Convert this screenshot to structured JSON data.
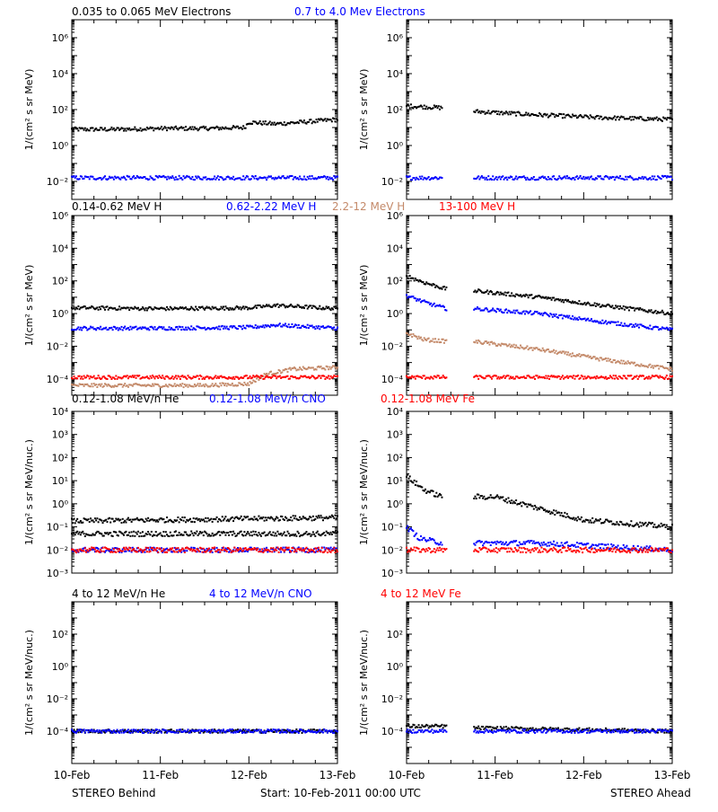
{
  "colors": {
    "black": "#000000",
    "blue": "#0000ff",
    "tan": "#c48a6a",
    "red": "#ff0000"
  },
  "footer": {
    "left": "STEREO Behind",
    "center": "Start: 10-Feb-2011 00:00 UTC",
    "right": "STEREO Ahead"
  },
  "x_tick_labels": [
    "10-Feb",
    "11-Feb",
    "12-Feb",
    "13-Feb"
  ],
  "chart_data": [
    {
      "type": "scatter",
      "row": 0,
      "legend": [
        {
          "label": "0.035 to 0.065 MeV Electrons",
          "color": "#000000"
        },
        {
          "label": "0.7 to 4.0 Mev Electrons",
          "color": "#0000ff"
        }
      ],
      "ylabel": "1/(cm² s sr MeV)",
      "y_log_range": [
        -3,
        7
      ],
      "y_ticks": [
        {
          "exp": -2,
          "label": "10⁻²"
        },
        {
          "exp": 0,
          "label": "10⁰"
        },
        {
          "exp": 2,
          "label": "10²"
        },
        {
          "exp": 4,
          "label": "10⁴"
        },
        {
          "exp": 6,
          "label": "10⁶"
        }
      ],
      "panels": [
        {
          "name": "STEREO Behind",
          "series": [
            {
              "color": "#000000",
              "points": [
                [
                  0.0,
                  0.9
                ],
                [
                  0.5,
                  0.9
                ],
                [
                  1.0,
                  0.95
                ],
                [
                  1.5,
                  0.95
                ],
                [
                  1.95,
                  1.0
                ],
                [
                  2.0,
                  1.3
                ],
                [
                  2.3,
                  1.2
                ],
                [
                  2.6,
                  1.3
                ],
                [
                  3.0,
                  1.45
                ]
              ]
            },
            {
              "color": "#0000ff",
              "points": [
                [
                  0.0,
                  -1.8
                ],
                [
                  1.0,
                  -1.8
                ],
                [
                  2.0,
                  -1.8
                ],
                [
                  3.0,
                  -1.8
                ]
              ]
            }
          ]
        },
        {
          "name": "STEREO Ahead",
          "series": [
            {
              "color": "#000000",
              "points": [
                [
                  0.0,
                  2.2
                ],
                [
                  0.4,
                  2.1
                ],
                [
                  0.55,
                  null
                ],
                [
                  0.75,
                  1.9
                ],
                [
                  1.5,
                  1.7
                ],
                [
                  2.2,
                  1.55
                ],
                [
                  3.0,
                  1.45
                ]
              ]
            },
            {
              "color": "#0000ff",
              "points": [
                [
                  0.0,
                  -1.8
                ],
                [
                  0.4,
                  -1.8
                ],
                [
                  0.55,
                  null
                ],
                [
                  0.75,
                  -1.8
                ],
                [
                  3.0,
                  -1.8
                ]
              ]
            }
          ]
        }
      ]
    },
    {
      "type": "scatter",
      "row": 1,
      "legend": [
        {
          "label": "0.14-0.62 MeV H",
          "color": "#000000"
        },
        {
          "label": "0.62-2.22 MeV H",
          "color": "#0000ff"
        },
        {
          "label": "2.2-12 MeV H",
          "color": "#c48a6a"
        },
        {
          "label": "13-100 MeV H",
          "color": "#ff0000"
        }
      ],
      "ylabel": "1/(cm² s sr MeV)",
      "y_log_range": [
        -5,
        6
      ],
      "y_ticks": [
        {
          "exp": -4,
          "label": "10⁻⁴"
        },
        {
          "exp": -2,
          "label": "10⁻²"
        },
        {
          "exp": 0,
          "label": "10⁰"
        },
        {
          "exp": 2,
          "label": "10²"
        },
        {
          "exp": 4,
          "label": "10⁴"
        },
        {
          "exp": 6,
          "label": "10⁶"
        }
      ],
      "panels": [
        {
          "name": "STEREO Behind",
          "series": [
            {
              "color": "#000000",
              "points": [
                [
                  0.0,
                  0.35
                ],
                [
                  1.0,
                  0.3
                ],
                [
                  2.0,
                  0.35
                ],
                [
                  2.3,
                  0.5
                ],
                [
                  3.0,
                  0.3
                ]
              ]
            },
            {
              "color": "#0000ff",
              "points": [
                [
                  0.0,
                  -0.9
                ],
                [
                  1.0,
                  -0.9
                ],
                [
                  2.0,
                  -0.85
                ],
                [
                  2.3,
                  -0.7
                ],
                [
                  3.0,
                  -0.9
                ]
              ]
            },
            {
              "color": "#c48a6a",
              "points": [
                [
                  0.0,
                  -4.4
                ],
                [
                  1.5,
                  -4.4
                ],
                [
                  2.0,
                  -4.3
                ],
                [
                  2.2,
                  -3.7
                ],
                [
                  2.5,
                  -3.4
                ],
                [
                  3.0,
                  -3.3
                ]
              ]
            },
            {
              "color": "#ff0000",
              "points": [
                [
                  0.0,
                  -3.9
                ],
                [
                  1.5,
                  -3.9
                ],
                [
                  3.0,
                  -3.9
                ]
              ]
            }
          ]
        },
        {
          "name": "STEREO Ahead",
          "series": [
            {
              "color": "#000000",
              "points": [
                [
                  0.0,
                  2.3
                ],
                [
                  0.2,
                  1.9
                ],
                [
                  0.45,
                  1.5
                ],
                [
                  0.55,
                  null
                ],
                [
                  0.75,
                  1.4
                ],
                [
                  1.5,
                  1.0
                ],
                [
                  2.2,
                  0.5
                ],
                [
                  3.0,
                  0.0
                ]
              ]
            },
            {
              "color": "#0000ff",
              "points": [
                [
                  0.0,
                  1.1
                ],
                [
                  0.2,
                  0.7
                ],
                [
                  0.45,
                  0.3
                ],
                [
                  0.55,
                  null
                ],
                [
                  0.75,
                  0.3
                ],
                [
                  1.5,
                  0.0
                ],
                [
                  2.2,
                  -0.5
                ],
                [
                  3.0,
                  -1.0
                ]
              ]
            },
            {
              "color": "#c48a6a",
              "points": [
                [
                  0.0,
                  -1.2
                ],
                [
                  0.2,
                  -1.6
                ],
                [
                  0.45,
                  -1.7
                ],
                [
                  0.55,
                  null
                ],
                [
                  0.75,
                  -1.7
                ],
                [
                  1.5,
                  -2.2
                ],
                [
                  2.2,
                  -2.8
                ],
                [
                  3.0,
                  -3.4
                ]
              ]
            },
            {
              "color": "#ff0000",
              "points": [
                [
                  0.0,
                  -3.9
                ],
                [
                  0.45,
                  -3.9
                ],
                [
                  0.55,
                  null
                ],
                [
                  0.75,
                  -3.9
                ],
                [
                  3.0,
                  -3.9
                ]
              ]
            }
          ]
        }
      ]
    },
    {
      "type": "scatter",
      "row": 2,
      "legend": [
        {
          "label": "0.12-1.08 MeV/n He",
          "color": "#000000"
        },
        {
          "label": "0.12-1.08 MeV/n CNO",
          "color": "#0000ff"
        },
        {
          "label": "0.12-1.08 MeV Fe",
          "color": "#ff0000"
        }
      ],
      "ylabel": "1/(cm² s sr MeV/nuc.)",
      "y_log_range": [
        -3,
        4
      ],
      "y_ticks": [
        {
          "exp": -3,
          "label": "10⁻³"
        },
        {
          "exp": -2,
          "label": "10⁻²"
        },
        {
          "exp": -1,
          "label": "10⁻¹"
        },
        {
          "exp": 0,
          "label": "10⁰"
        },
        {
          "exp": 1,
          "label": "10¹"
        },
        {
          "exp": 2,
          "label": "10²"
        },
        {
          "exp": 3,
          "label": "10³"
        },
        {
          "exp": 4,
          "label": "10⁴"
        }
      ],
      "panels": [
        {
          "name": "STEREO Behind",
          "series": [
            {
              "color": "#000000",
              "points": [
                [
                  0.0,
                  -0.75
                ],
                [
                  1.0,
                  -0.7
                ],
                [
                  2.0,
                  -0.65
                ],
                [
                  3.0,
                  -0.6
                ]
              ]
            },
            {
              "color": "#000000",
              "points": [
                [
                  0.0,
                  -1.3
                ],
                [
                  3.0,
                  -1.3
                ]
              ]
            },
            {
              "color": "#0000ff",
              "points": [
                [
                  0.0,
                  -2.0
                ],
                [
                  3.0,
                  -2.0
                ]
              ]
            },
            {
              "color": "#ff0000",
              "points": [
                [
                  0.0,
                  -2.0
                ],
                [
                  3.0,
                  -2.0
                ]
              ]
            }
          ]
        },
        {
          "name": "STEREO Ahead",
          "series": [
            {
              "color": "#000000",
              "points": [
                [
                  0.0,
                  1.2
                ],
                [
                  0.2,
                  0.6
                ],
                [
                  0.4,
                  0.3
                ],
                [
                  0.55,
                  null
                ],
                [
                  0.75,
                  0.3
                ],
                [
                  1.0,
                  0.3
                ],
                [
                  1.5,
                  -0.2
                ],
                [
                  2.0,
                  -0.7
                ],
                [
                  3.0,
                  -1.0
                ]
              ]
            },
            {
              "color": "#0000ff",
              "points": [
                [
                  0.0,
                  -1.0
                ],
                [
                  0.15,
                  -1.5
                ],
                [
                  0.4,
                  -1.7
                ],
                [
                  0.55,
                  null
                ],
                [
                  0.75,
                  -1.7
                ],
                [
                  1.5,
                  -1.7
                ],
                [
                  3.0,
                  -2.0
                ]
              ]
            },
            {
              "color": "#ff0000",
              "points": [
                [
                  0.0,
                  -2.0
                ],
                [
                  0.45,
                  -2.0
                ],
                [
                  0.55,
                  null
                ],
                [
                  0.75,
                  -2.0
                ],
                [
                  3.0,
                  -2.0
                ]
              ]
            }
          ]
        }
      ]
    },
    {
      "type": "scatter",
      "row": 3,
      "legend": [
        {
          "label": "4 to 12 MeV/n He",
          "color": "#000000"
        },
        {
          "label": "4 to 12 MeV/n CNO",
          "color": "#0000ff"
        },
        {
          "label": "4 to 12 MeV Fe",
          "color": "#ff0000"
        }
      ],
      "ylabel": "1/(cm² s sr MeV/nuc.)",
      "y_log_range": [
        -6,
        4
      ],
      "y_ticks": [
        {
          "exp": -4,
          "label": "10⁻⁴"
        },
        {
          "exp": -2,
          "label": "10⁻²"
        },
        {
          "exp": 0,
          "label": "10⁰"
        },
        {
          "exp": 2,
          "label": "10²"
        }
      ],
      "panels": [
        {
          "name": "STEREO Behind",
          "series": [
            {
              "color": "#000000",
              "points": [
                [
                  0.0,
                  -4.0
                ],
                [
                  3.0,
                  -4.0
                ]
              ]
            },
            {
              "color": "#0000ff",
              "points": [
                [
                  0.0,
                  -4.0
                ],
                [
                  3.0,
                  -4.0
                ]
              ]
            }
          ]
        },
        {
          "name": "STEREO Ahead",
          "series": [
            {
              "color": "#000000",
              "points": [
                [
                  0.0,
                  -3.7
                ],
                [
                  0.45,
                  -3.7
                ],
                [
                  0.55,
                  null
                ],
                [
                  0.75,
                  -3.8
                ],
                [
                  3.0,
                  -4.0
                ]
              ]
            },
            {
              "color": "#0000ff",
              "points": [
                [
                  0.0,
                  -4.0
                ],
                [
                  0.45,
                  -4.0
                ],
                [
                  0.55,
                  null
                ],
                [
                  0.75,
                  -4.0
                ],
                [
                  3.0,
                  -4.0
                ]
              ]
            }
          ]
        }
      ]
    }
  ]
}
